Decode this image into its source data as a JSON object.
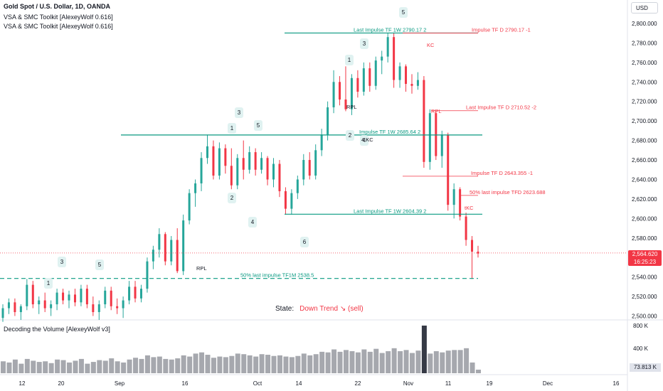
{
  "header": {
    "symbol_line": "Gold Spot / U.S. Dollar, 1D, OANDA",
    "indicator_1": "VSA & SMC Toolkit [AlexeyWolf 0.616]",
    "indicator_2": "VSA & SMC Toolkit [AlexeyWolf 0.616]",
    "currency_button": "USD"
  },
  "price_tag": {
    "price": "2,564.620",
    "countdown": "16:25:23"
  },
  "state": {
    "label": "State:",
    "value": "Down Trend ↘ (sell)"
  },
  "volume_panel": {
    "title": "Decoding the Volume [AlexeyWolf v3]",
    "current": "73.813 K"
  },
  "colors": {
    "up": "#26a69a",
    "down": "#f23645",
    "level": "#089981",
    "volume": "#a6a8ae",
    "volume_peak": "#363a45"
  },
  "chart_data": {
    "type": "candlestick",
    "yticks": [
      "2,500.000",
      "2,520.000",
      "2,540.000",
      "2,560.000",
      "2,580.000",
      "2,600.000",
      "2,620.000",
      "2,640.000",
      "2,660.000",
      "2,680.000",
      "2,700.000",
      "2,720.000",
      "2,740.000",
      "2,760.000",
      "2,780.000",
      "2,800.000"
    ],
    "ytick_values": [
      2500,
      2520,
      2540,
      2560,
      2580,
      2600,
      2620,
      2640,
      2660,
      2680,
      2700,
      2720,
      2740,
      2760,
      2780,
      2800
    ],
    "ylim": [
      2496,
      2808
    ],
    "xticks": [
      "12",
      "20",
      "Sep",
      "16",
      "Oct",
      "14",
      "22",
      "Nov",
      "11",
      "19",
      "Dec",
      "16"
    ],
    "volume_ticks": [
      "800 K",
      "400 K"
    ],
    "candles": [
      [
        2498,
        2512,
        2494,
        2508
      ],
      [
        2508,
        2518,
        2502,
        2514
      ],
      [
        2514,
        2518,
        2500,
        2504
      ],
      [
        2504,
        2512,
        2496,
        2510
      ],
      [
        2510,
        2538,
        2506,
        2532
      ],
      [
        2532,
        2536,
        2508,
        2512
      ],
      [
        2512,
        2520,
        2502,
        2516
      ],
      [
        2516,
        2524,
        2504,
        2508
      ],
      [
        2508,
        2516,
        2500,
        2512
      ],
      [
        2512,
        2528,
        2506,
        2524
      ],
      [
        2524,
        2528,
        2512,
        2516
      ],
      [
        2516,
        2526,
        2508,
        2522
      ],
      [
        2522,
        2528,
        2510,
        2514
      ],
      [
        2514,
        2532,
        2510,
        2528
      ],
      [
        2528,
        2532,
        2508,
        2512
      ],
      [
        2512,
        2520,
        2500,
        2504
      ],
      [
        2504,
        2516,
        2496,
        2512
      ],
      [
        2512,
        2530,
        2508,
        2526
      ],
      [
        2526,
        2530,
        2506,
        2510
      ],
      [
        2510,
        2518,
        2502,
        2508
      ],
      [
        2508,
        2520,
        2498,
        2516
      ],
      [
        2516,
        2536,
        2512,
        2530
      ],
      [
        2530,
        2536,
        2514,
        2518
      ],
      [
        2518,
        2532,
        2514,
        2528
      ],
      [
        2528,
        2560,
        2524,
        2556
      ],
      [
        2556,
        2572,
        2548,
        2568
      ],
      [
        2568,
        2590,
        2560,
        2584
      ],
      [
        2584,
        2586,
        2552,
        2556
      ],
      [
        2556,
        2582,
        2552,
        2578
      ],
      [
        2578,
        2590,
        2544,
        2546
      ],
      [
        2546,
        2604,
        2542,
        2598
      ],
      [
        2598,
        2630,
        2594,
        2626
      ],
      [
        2626,
        2640,
        2612,
        2636
      ],
      [
        2636,
        2668,
        2628,
        2662
      ],
      [
        2662,
        2686,
        2656,
        2674
      ],
      [
        2674,
        2680,
        2640,
        2644
      ],
      [
        2644,
        2678,
        2640,
        2672
      ],
      [
        2672,
        2676,
        2646,
        2654
      ],
      [
        2654,
        2672,
        2630,
        2634
      ],
      [
        2634,
        2666,
        2630,
        2662
      ],
      [
        2662,
        2680,
        2640,
        2650
      ],
      [
        2650,
        2674,
        2646,
        2668
      ],
      [
        2668,
        2672,
        2644,
        2650
      ],
      [
        2650,
        2668,
        2646,
        2662
      ],
      [
        2662,
        2664,
        2634,
        2640
      ],
      [
        2640,
        2662,
        2632,
        2656
      ],
      [
        2656,
        2660,
        2622,
        2628
      ],
      [
        2628,
        2632,
        2604,
        2610
      ],
      [
        2610,
        2630,
        2604,
        2626
      ],
      [
        2626,
        2644,
        2620,
        2640
      ],
      [
        2640,
        2666,
        2634,
        2660
      ],
      [
        2660,
        2668,
        2640,
        2644
      ],
      [
        2644,
        2676,
        2640,
        2670
      ],
      [
        2670,
        2692,
        2664,
        2686
      ],
      [
        2686,
        2720,
        2680,
        2714
      ],
      [
        2714,
        2752,
        2708,
        2740
      ],
      [
        2740,
        2746,
        2716,
        2722
      ],
      [
        2722,
        2756,
        2710,
        2712
      ],
      [
        2712,
        2748,
        2706,
        2744
      ],
      [
        2744,
        2752,
        2724,
        2730
      ],
      [
        2730,
        2760,
        2726,
        2754
      ],
      [
        2754,
        2760,
        2730,
        2736
      ],
      [
        2736,
        2766,
        2732,
        2762
      ],
      [
        2762,
        2772,
        2748,
        2766
      ],
      [
        2766,
        2790,
        2760,
        2786
      ],
      [
        2786,
        2790,
        2734,
        2742
      ],
      [
        2742,
        2760,
        2734,
        2756
      ],
      [
        2756,
        2758,
        2730,
        2738
      ],
      [
        2738,
        2748,
        2728,
        2736
      ],
      [
        2736,
        2750,
        2732,
        2742
      ],
      [
        2742,
        2746,
        2652,
        2658
      ],
      [
        2658,
        2712,
        2650,
        2708
      ],
      [
        2708,
        2710,
        2660,
        2664
      ],
      [
        2664,
        2690,
        2652,
        2686
      ],
      [
        2686,
        2688,
        2608,
        2614
      ],
      [
        2614,
        2636,
        2600,
        2630
      ],
      [
        2630,
        2632,
        2598,
        2602
      ],
      [
        2602,
        2606,
        2572,
        2578
      ],
      [
        2578,
        2582,
        2538,
        2566
      ],
      [
        2566,
        2572,
        2560,
        2564
      ]
    ],
    "volumes": [
      200,
      180,
      230,
      160,
      240,
      210,
      190,
      200,
      170,
      230,
      220,
      180,
      210,
      240,
      160,
      190,
      220,
      210,
      250,
      200,
      180,
      230,
      260,
      240,
      300,
      270,
      280,
      240,
      230,
      250,
      300,
      280,
      330,
      350,
      310,
      260,
      280,
      270,
      290,
      330,
      320,
      300,
      280,
      320,
      310,
      290,
      300,
      280,
      270,
      290,
      330,
      300,
      320,
      360,
      350,
      400,
      360,
      390,
      370,
      350,
      400,
      360,
      410,
      340,
      370,
      420,
      370,
      390,
      340,
      380,
      800,
      330,
      370,
      350,
      380,
      390,
      390,
      420,
      180,
      60
    ],
    "levels": [
      {
        "label": "Last Impulse TF 1W 2790.17 2",
        "value": 2790.17,
        "color": "#089981"
      },
      {
        "label": "Impulse TF 1W 2685.64 2",
        "value": 2685.64,
        "color": "#089981"
      },
      {
        "label": "Last Impulse TF 1W 2604.39 2",
        "value": 2604.39,
        "color": "#089981"
      },
      {
        "label": "50% last impulse TF1M 2538.5",
        "value": 2538.5,
        "color": "#089981"
      },
      {
        "label": "Impulse TF D 2790.17 -1",
        "value": 2790.17,
        "color": "#f23645"
      },
      {
        "label": "Last Impulse TF D 2710.52 -2",
        "value": 2710.52,
        "color": "#f23645"
      },
      {
        "label": "Impulse TF D 2643.355 -1",
        "value": 2643.355,
        "color": "#f23645"
      },
      {
        "label": "50% last impulse TFD 2623.688",
        "value": 2623.688,
        "color": "#f23645"
      }
    ],
    "wave_labels": [
      "1",
      "3",
      "5",
      "1",
      "3",
      "5",
      "2",
      "4",
      "6",
      "1",
      "3",
      "5",
      "2",
      "4"
    ],
    "annotations": [
      "KC",
      "RPL",
      "RPL",
      "RPL",
      "4 KC",
      "tKC"
    ]
  }
}
